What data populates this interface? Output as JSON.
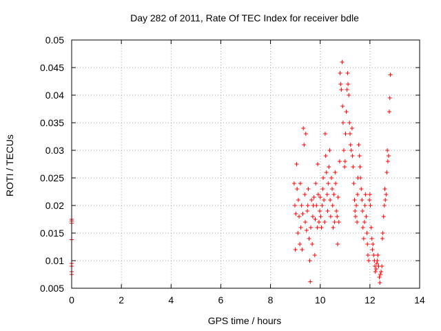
{
  "chart_data": {
    "type": "scatter",
    "title": "Day 282 of 2011, Rate Of TEC Index for receiver bdle",
    "xlabel": "GPS time / hours",
    "ylabel": "ROTI / TECUs",
    "xlim": [
      0,
      14
    ],
    "ylim": [
      0.005,
      0.05
    ],
    "xticks": [
      0,
      2,
      4,
      6,
      8,
      10,
      12,
      14
    ],
    "yticks": [
      0.005,
      0.01,
      0.015,
      0.02,
      0.025,
      0.03,
      0.035,
      0.04,
      0.045,
      0.05
    ],
    "xtick_labels": [
      "0",
      "2",
      "4",
      "6",
      "8",
      "10",
      "12",
      "14"
    ],
    "ytick_labels": [
      "0.005",
      "0.01",
      "0.015",
      "0.02",
      "0.025",
      "0.03",
      "0.035",
      "0.04",
      "0.045",
      "0.05"
    ],
    "grid": true,
    "marker": "+",
    "color": "#ff0000",
    "series": [
      {
        "name": "ROTI",
        "x": [
          0.0,
          0.0,
          0.0,
          0.0,
          0.0,
          0.0,
          0.0,
          0.0,
          8.95,
          8.98,
          9.0,
          9.02,
          9.05,
          9.07,
          9.1,
          9.12,
          9.15,
          9.18,
          9.2,
          9.22,
          9.25,
          9.27,
          9.3,
          9.32,
          9.35,
          9.38,
          9.4,
          9.42,
          9.45,
          9.48,
          9.5,
          9.52,
          9.55,
          9.58,
          9.6,
          9.62,
          9.65,
          9.68,
          9.7,
          9.72,
          9.75,
          9.78,
          9.8,
          9.82,
          9.85,
          9.88,
          9.9,
          9.92,
          9.95,
          9.98,
          10.0,
          10.02,
          10.05,
          10.08,
          10.1,
          10.12,
          10.15,
          10.18,
          10.2,
          10.22,
          10.25,
          10.28,
          10.3,
          10.32,
          10.35,
          10.38,
          10.4,
          10.42,
          10.45,
          10.48,
          10.5,
          10.52,
          10.55,
          10.58,
          10.6,
          10.62,
          10.65,
          10.68,
          10.7,
          10.72,
          10.75,
          10.78,
          10.8,
          10.82,
          10.85,
          10.88,
          10.9,
          10.92,
          10.95,
          10.98,
          11.0,
          11.02,
          11.05,
          11.08,
          11.1,
          11.12,
          11.15,
          11.18,
          11.2,
          11.22,
          11.25,
          11.28,
          11.3,
          11.32,
          11.35,
          11.38,
          11.4,
          11.42,
          11.45,
          11.48,
          11.5,
          11.52,
          11.55,
          11.58,
          11.6,
          11.62,
          11.65,
          11.68,
          11.7,
          11.72,
          11.75,
          11.78,
          11.8,
          11.82,
          11.85,
          11.88,
          11.9,
          11.92,
          11.95,
          11.98,
          12.0,
          12.02,
          12.05,
          12.08,
          12.1,
          12.12,
          12.15,
          12.18,
          12.2,
          12.22,
          12.25,
          12.28,
          12.3,
          12.32,
          12.35,
          12.38,
          12.4,
          12.42,
          12.45,
          12.48,
          12.5,
          12.52,
          12.55,
          12.58,
          12.6,
          12.62,
          12.65,
          12.68,
          12.7,
          12.72,
          12.75,
          12.78,
          12.8,
          12.82
        ],
        "y": [
          0.0175,
          0.0172,
          0.0168,
          0.0138,
          0.0095,
          0.009,
          0.008,
          0.0075,
          0.024,
          0.02,
          0.012,
          0.0185,
          0.0275,
          0.023,
          0.015,
          0.021,
          0.018,
          0.013,
          0.024,
          0.016,
          0.02,
          0.012,
          0.0185,
          0.034,
          0.031,
          0.022,
          0.017,
          0.033,
          0.0155,
          0.019,
          0.02,
          0.023,
          0.014,
          0.01,
          0.0062,
          0.016,
          0.021,
          0.013,
          0.018,
          0.02,
          0.0215,
          0.011,
          0.0175,
          0.024,
          0.02,
          0.016,
          0.0275,
          0.022,
          0.017,
          0.019,
          0.0215,
          0.018,
          0.016,
          0.02,
          0.023,
          0.025,
          0.021,
          0.017,
          0.033,
          0.029,
          0.026,
          0.022,
          0.019,
          0.024,
          0.027,
          0.03,
          0.021,
          0.018,
          0.025,
          0.023,
          0.02,
          0.016,
          0.022,
          0.017,
          0.026,
          0.024,
          0.019,
          0.018,
          0.013,
          0.0215,
          0.017,
          0.028,
          0.044,
          0.042,
          0.041,
          0.046,
          0.038,
          0.035,
          0.03,
          0.027,
          0.028,
          0.033,
          0.037,
          0.041,
          0.044,
          0.042,
          0.04,
          0.035,
          0.033,
          0.031,
          0.03,
          0.034,
          0.029,
          0.027,
          0.024,
          0.021,
          0.019,
          0.018,
          0.02,
          0.017,
          0.022,
          0.025,
          0.031,
          0.029,
          0.027,
          0.025,
          0.023,
          0.021,
          0.019,
          0.016,
          0.014,
          0.017,
          0.02,
          0.022,
          0.018,
          0.015,
          0.013,
          0.011,
          0.01,
          0.021,
          0.022,
          0.02,
          0.016,
          0.014,
          0.012,
          0.013,
          0.011,
          0.01,
          0.009,
          0.008,
          0.0085,
          0.0095,
          0.01,
          0.011,
          0.009,
          0.007,
          0.006,
          0.0075,
          0.008,
          0.009,
          0.014,
          0.015,
          0.018,
          0.02,
          0.023,
          0.021,
          0.022,
          0.026,
          0.03,
          0.028,
          0.029,
          0.037,
          0.0395,
          0.0437
        ]
      }
    ]
  }
}
